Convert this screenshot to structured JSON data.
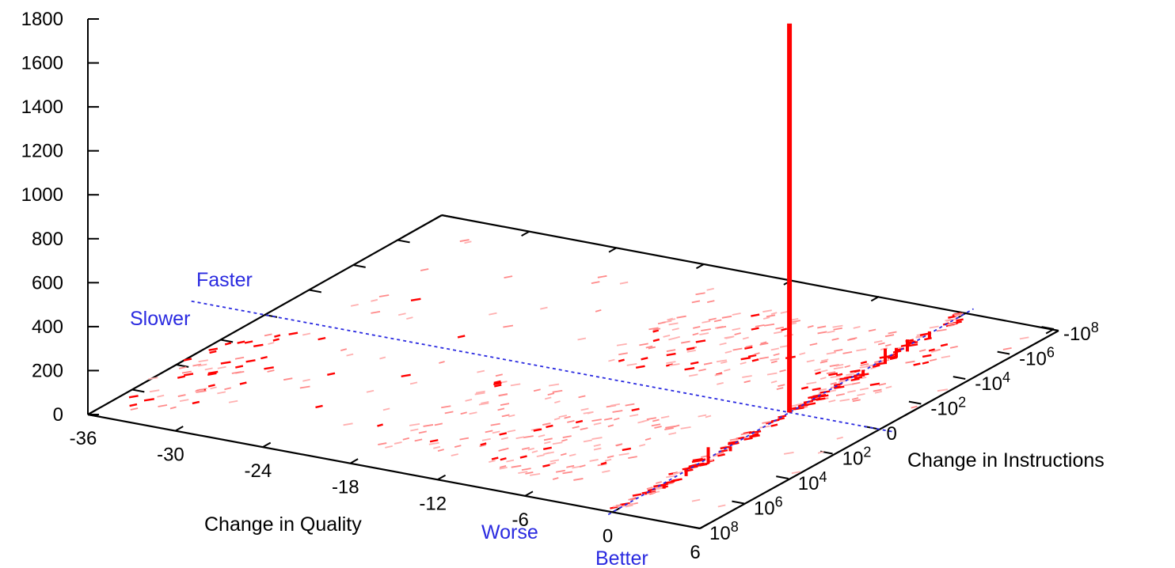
{
  "chart_data": {
    "type": "3d-histogram",
    "title": "",
    "xlabel": "Change in Quality",
    "ylabel": "Change in Instructions",
    "zlabel": "",
    "x_ticks": [
      "-36",
      "-30",
      "-24",
      "-18",
      "-12",
      "-6",
      "0",
      "6"
    ],
    "x_range": [
      -36,
      6
    ],
    "y_ticks": [
      "10^8",
      "10^6",
      "10^4",
      "10^2",
      "0",
      "-10^2",
      "-10^4",
      "-10^6",
      "-10^8"
    ],
    "y_scale": "symlog",
    "z_ticks": [
      "0",
      "200",
      "400",
      "600",
      "800",
      "1000",
      "1200",
      "1400",
      "1600",
      "1800"
    ],
    "z_range": [
      0,
      1800
    ],
    "grid": false,
    "colors": {
      "bars": "#ff0000",
      "dividers": "#2a2ae0",
      "axes": "#000000"
    },
    "annotations": {
      "faster": "Faster",
      "slower": "Slower",
      "worse": "Worse",
      "better": "Better"
    },
    "peak": {
      "quality": 0,
      "instructions": "0",
      "count": 1770
    },
    "bars": [
      {
        "quality": 0,
        "instructions": "0",
        "count": 1770
      },
      {
        "quality": 0,
        "instructions": "0",
        "count": 40
      },
      {
        "quality": 0.5,
        "instructions": "-10^4",
        "count": 70
      },
      {
        "quality": 0.5,
        "instructions": "-10^4.5",
        "count": 45
      },
      {
        "quality": 0.5,
        "instructions": "-10^5",
        "count": 55
      },
      {
        "quality": 0.5,
        "instructions": "-10^6",
        "count": 35
      },
      {
        "quality": 0.5,
        "instructions": "-10^3",
        "count": 30
      },
      {
        "quality": 0.5,
        "instructions": "10^4",
        "count": 75
      },
      {
        "quality": 0.5,
        "instructions": "10^5",
        "count": 30
      },
      {
        "quality": 0.5,
        "instructions": "10^6",
        "count": 20
      },
      {
        "quality": 0.5,
        "instructions": "10^3",
        "count": 22
      }
    ]
  }
}
